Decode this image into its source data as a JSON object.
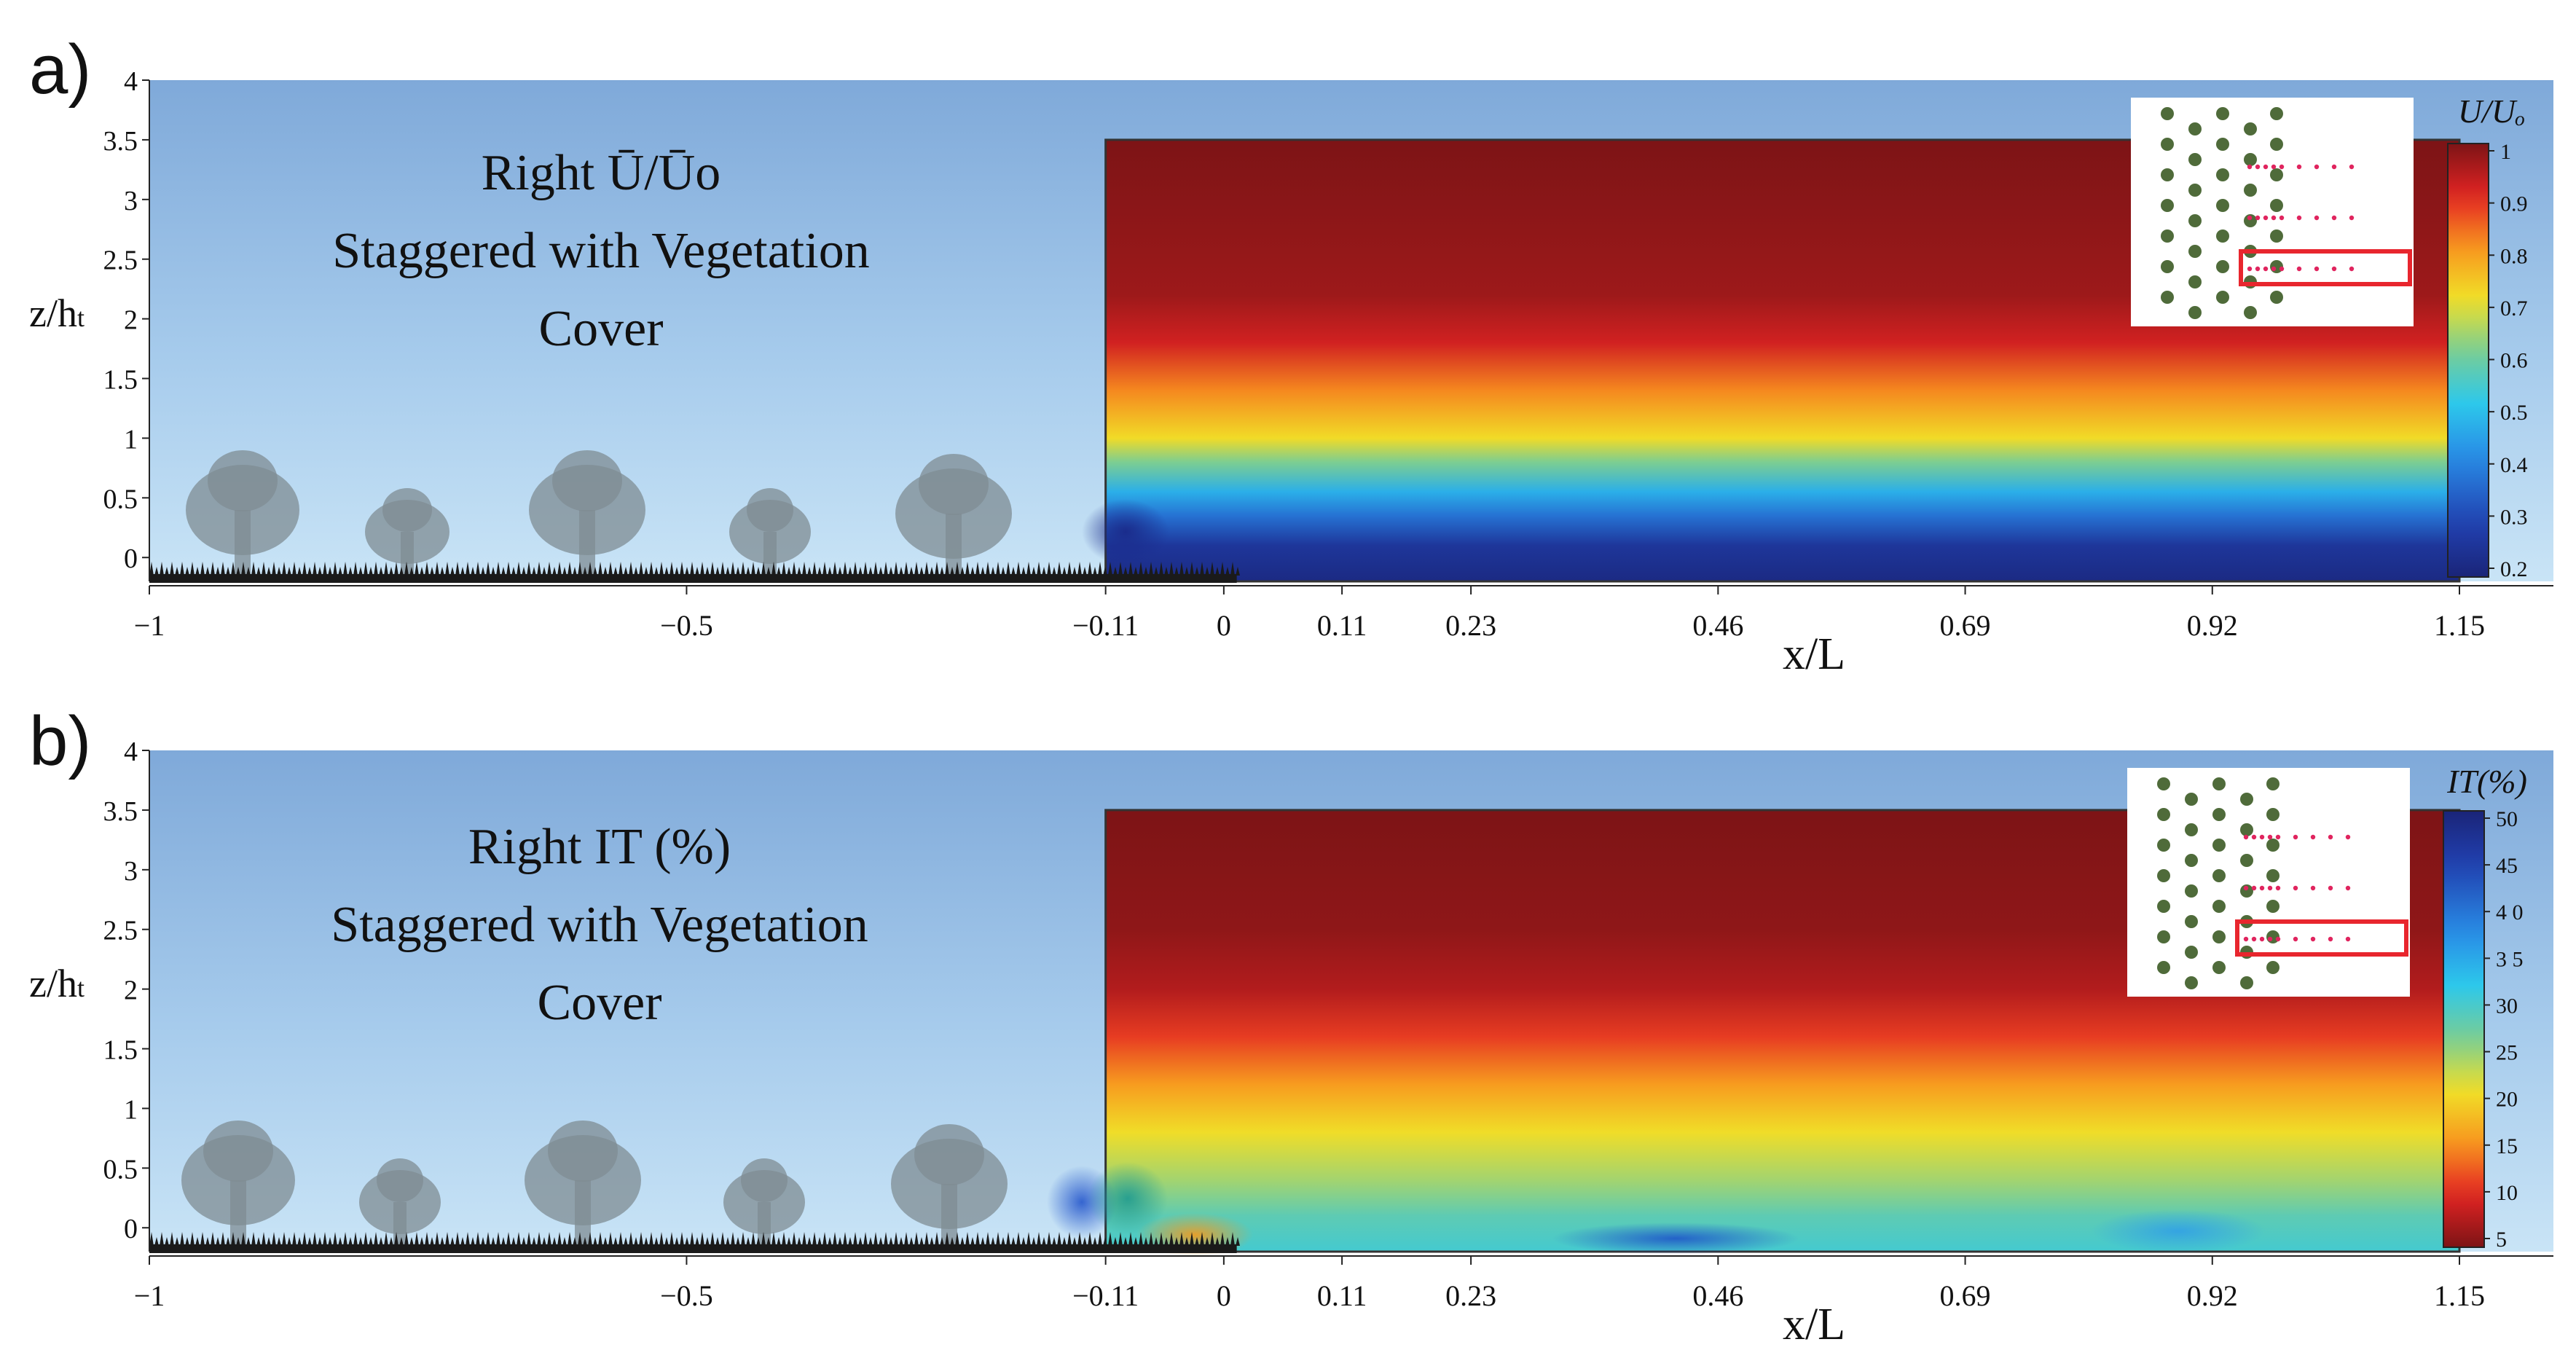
{
  "chart_data": [
    {
      "type": "contour",
      "panel_label": "a)",
      "title_lines": [
        "Right Ū/Ūo",
        "Staggered with Vegetation",
        "Cover"
      ],
      "xlabel": "x/L",
      "ylabel": {
        "main": "z/h",
        "sub": "t"
      },
      "x_ticks": [
        {
          "value": -1,
          "label": "−1"
        },
        {
          "value": -0.5,
          "label": "−0.5"
        },
        {
          "value": -0.11,
          "label": "−0.11"
        },
        {
          "value": 0,
          "label": "0"
        },
        {
          "value": 0.11,
          "label": "0.11"
        },
        {
          "value": 0.23,
          "label": "0.23"
        },
        {
          "value": 0.46,
          "label": "0.46"
        },
        {
          "value": 0.69,
          "label": "0.69"
        },
        {
          "value": 0.92,
          "label": "0.92"
        },
        {
          "value": 1.15,
          "label": "1.15"
        }
      ],
      "y_ticks": [
        {
          "value": 0,
          "label": "0"
        },
        {
          "value": 0.5,
          "label": "0.5"
        },
        {
          "value": 1,
          "label": "1"
        },
        {
          "value": 1.5,
          "label": "1.5"
        },
        {
          "value": 2,
          "label": "2"
        },
        {
          "value": 2.5,
          "label": "2.5"
        },
        {
          "value": 3,
          "label": "3"
        },
        {
          "value": 3.5,
          "label": "3.5"
        },
        {
          "value": 4,
          "label": "4"
        }
      ],
      "xlim": [
        -1,
        1.15
      ],
      "ylim": [
        -0.2,
        4
      ],
      "field_xrange": [
        -0.11,
        1.15
      ],
      "field_zrange": [
        -0.2,
        3.5
      ],
      "field_profile": [
        {
          "z": -0.2,
          "value": 0.22
        },
        {
          "z": 0.1,
          "value": 0.26
        },
        {
          "z": 0.35,
          "value": 0.38
        },
        {
          "z": 0.55,
          "value": 0.48
        },
        {
          "z": 0.8,
          "value": 0.62
        },
        {
          "z": 1.0,
          "value": 0.72
        },
        {
          "z": 1.4,
          "value": 0.82
        },
        {
          "z": 1.8,
          "value": 0.92
        },
        {
          "z": 2.2,
          "value": 0.97
        },
        {
          "z": 3.5,
          "value": 1.0
        }
      ],
      "colorbar": {
        "label": "U/Uₒ",
        "scale": "jet",
        "reversed": false,
        "min": 0.2,
        "max": 1.0,
        "ticks": [
          "0.2",
          "0.3",
          "0.4",
          "0.5",
          "0.6",
          "0.7",
          "0.8",
          "0.9",
          "1"
        ]
      }
    },
    {
      "type": "contour",
      "panel_label": "b)",
      "title_lines": [
        "Right IT (%)",
        "Staggered with Vegetation",
        "Cover"
      ],
      "xlabel": "x/L",
      "ylabel": {
        "main": "z/h",
        "sub": "t"
      },
      "x_ticks": [
        {
          "value": -1,
          "label": "−1"
        },
        {
          "value": -0.5,
          "label": "−0.5"
        },
        {
          "value": -0.11,
          "label": "−0.11"
        },
        {
          "value": 0,
          "label": "0"
        },
        {
          "value": 0.11,
          "label": "0.11"
        },
        {
          "value": 0.23,
          "label": "0.23"
        },
        {
          "value": 0.46,
          "label": "0.46"
        },
        {
          "value": 0.69,
          "label": "0.69"
        },
        {
          "value": 0.92,
          "label": "0.92"
        },
        {
          "value": 1.15,
          "label": "1.15"
        }
      ],
      "y_ticks": [
        {
          "value": 0,
          "label": "0"
        },
        {
          "value": 0.5,
          "label": "0.5"
        },
        {
          "value": 1,
          "label": "1"
        },
        {
          "value": 1.5,
          "label": "1.5"
        },
        {
          "value": 2,
          "label": "2"
        },
        {
          "value": 2.5,
          "label": "2.5"
        },
        {
          "value": 3,
          "label": "3"
        },
        {
          "value": 3.5,
          "label": "3.5"
        },
        {
          "value": 4,
          "label": "4"
        }
      ],
      "xlim": [
        -1,
        1.15
      ],
      "ylim": [
        -0.2,
        4
      ],
      "field_xrange": [
        -0.11,
        1.15
      ],
      "field_zrange": [
        -0.2,
        3.5
      ],
      "field_profile": [
        {
          "z": -0.2,
          "value": 30
        },
        {
          "z": 0.1,
          "value": 28
        },
        {
          "z": 0.4,
          "value": 24
        },
        {
          "z": 0.8,
          "value": 20
        },
        {
          "z": 1.2,
          "value": 15
        },
        {
          "z": 1.6,
          "value": 10
        },
        {
          "z": 2.0,
          "value": 6
        },
        {
          "z": 2.5,
          "value": 4
        },
        {
          "z": 3.5,
          "value": 3
        }
      ],
      "colorbar": {
        "label": "IT(%)",
        "scale": "jet",
        "reversed": true,
        "min": 3,
        "max": 51,
        "ticks": [
          "5",
          "10",
          "15",
          "20",
          "25",
          "30",
          "3 5",
          "4 0",
          "45",
          "50"
        ]
      }
    }
  ]
}
